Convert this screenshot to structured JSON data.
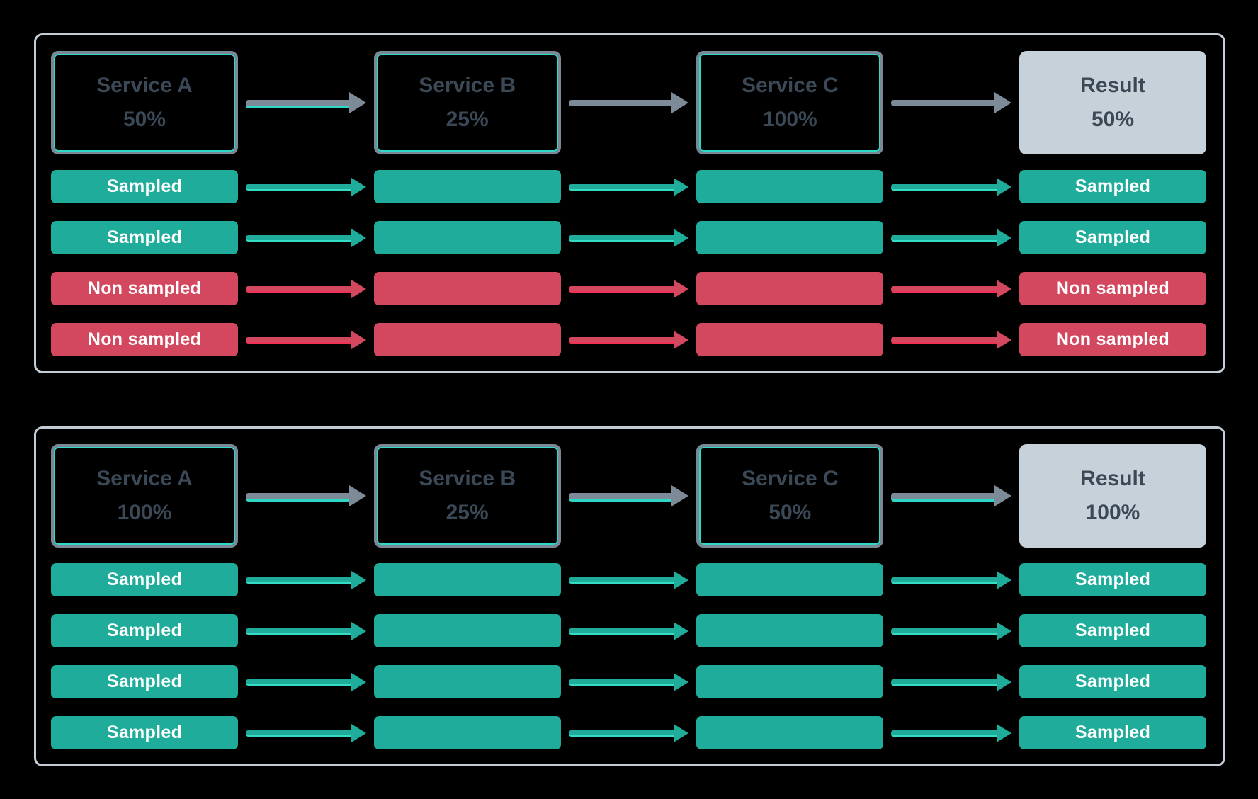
{
  "colors": {
    "background": "#000000",
    "sampled": "#1FAC9B",
    "sampled_bright": "#34DCC4",
    "non_sampled": "#D4485F",
    "non_sampled_bright": "#EE3356",
    "arrow_gray": "#7D8B99",
    "accent_teal": "#2ED8C6",
    "panel_border": "#C4CCD5",
    "service_border": "#7A8795",
    "service_inner_border": "#2ED8C6",
    "result_fill": "#C7D1D9",
    "dark_text": "#3B4856",
    "light_text": "#FFFFFF"
  },
  "panels": [
    {
      "id": "head-sampling-50",
      "header": {
        "services": [
          {
            "name": "Service A",
            "rate": "50%"
          },
          {
            "name": "Service B",
            "rate": "25%"
          },
          {
            "name": "Service C",
            "rate": "100%"
          },
          {
            "name": "Result",
            "rate": "50%"
          }
        ],
        "arrow_accents": [
          true,
          false,
          false
        ]
      },
      "rows": [
        {
          "type": "sampled",
          "label": "Sampled"
        },
        {
          "type": "sampled",
          "label": "Sampled"
        },
        {
          "type": "non-sampled",
          "label": "Non sampled"
        },
        {
          "type": "non-sampled",
          "label": "Non sampled"
        }
      ]
    },
    {
      "id": "head-sampling-100",
      "header": {
        "services": [
          {
            "name": "Service A",
            "rate": "100%"
          },
          {
            "name": "Service B",
            "rate": "25%"
          },
          {
            "name": "Service C",
            "rate": "50%"
          },
          {
            "name": "Result",
            "rate": "100%"
          }
        ],
        "arrow_accents": [
          true,
          true,
          true
        ]
      },
      "rows": [
        {
          "type": "sampled",
          "label": "Sampled"
        },
        {
          "type": "sampled",
          "label": "Sampled"
        },
        {
          "type": "sampled",
          "label": "Sampled"
        },
        {
          "type": "sampled",
          "label": "Sampled"
        }
      ]
    }
  ]
}
